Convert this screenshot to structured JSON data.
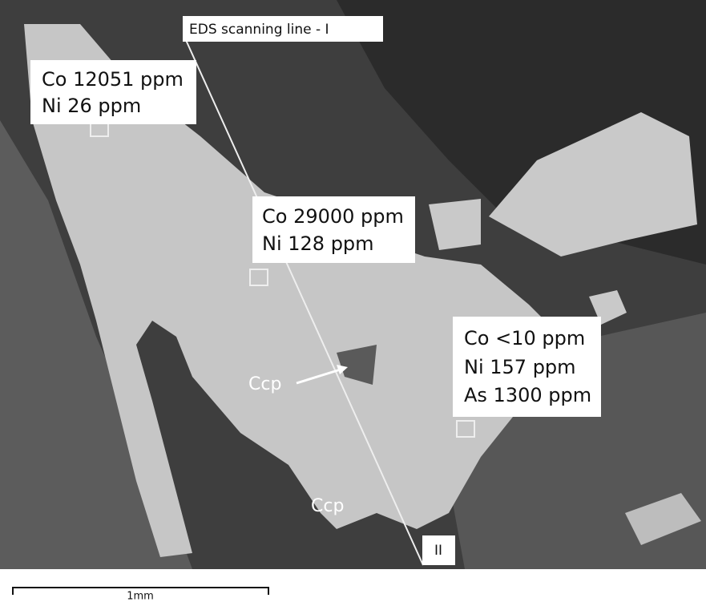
{
  "annotations": {
    "scan_line": {
      "start_label": "EDS scanning line  - I",
      "end_label": "II"
    },
    "analysis_points": [
      {
        "lines": [
          "Co 12051 ppm",
          "Ni 26 ppm"
        ]
      },
      {
        "lines": [
          "Co 29000 ppm",
          "Ni 128 ppm"
        ]
      },
      {
        "lines": [
          "Co <10 ppm",
          "Ni 157 ppm",
          "As 1300 ppm"
        ]
      }
    ],
    "mineral_labels": [
      "Ccp",
      "Ccp"
    ]
  },
  "scale_bar": {
    "label": "1mm"
  }
}
